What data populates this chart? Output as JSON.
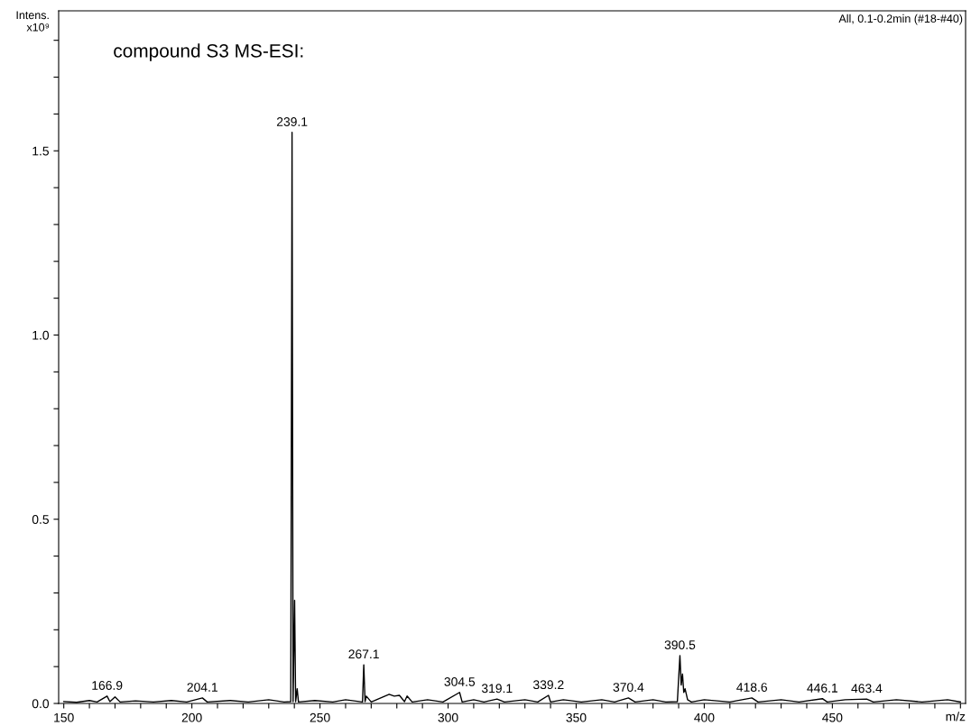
{
  "chart_data": {
    "type": "line",
    "title": "compound S3 MS-ESI:",
    "subtitle": "All, 0.1-0.2min (#18-#40)",
    "xlabel": "m/z",
    "ylabel": "Intens.\nx10⁹",
    "xlim": [
      148,
      502
    ],
    "ylim": [
      0,
      1.88
    ],
    "xticks": [
      150,
      {
        "value": 160,
        "label": null
      },
      {
        "value": 170,
        "label": null
      },
      {
        "value": 180,
        "label": null
      },
      {
        "value": 190,
        "label": null
      },
      200,
      {
        "value": 210,
        "label": null
      },
      {
        "value": 220,
        "label": null
      },
      {
        "value": 230,
        "label": null
      },
      {
        "value": 240,
        "label": null
      },
      250,
      {
        "value": 260,
        "label": null
      },
      {
        "value": 270,
        "label": null
      },
      {
        "value": 280,
        "label": null
      },
      {
        "value": 290,
        "label": null
      },
      300,
      {
        "value": 310,
        "label": null
      },
      {
        "value": 320,
        "label": null
      },
      {
        "value": 330,
        "label": null
      },
      {
        "value": 340,
        "label": null
      },
      350,
      {
        "value": 360,
        "label": null
      },
      {
        "value": 370,
        "label": null
      },
      {
        "value": 380,
        "label": null
      },
      {
        "value": 390,
        "label": null
      },
      400,
      {
        "value": 410,
        "label": null
      },
      {
        "value": 420,
        "label": null
      },
      {
        "value": 430,
        "label": null
      },
      {
        "value": 440,
        "label": null
      },
      450,
      {
        "value": 460,
        "label": null
      },
      {
        "value": 470,
        "label": null
      },
      {
        "value": 480,
        "label": null
      },
      {
        "value": 490,
        "label": null
      },
      {
        "value": 500,
        "label": null
      }
    ],
    "yticks": [
      {
        "value": 0,
        "label": "0.0"
      },
      {
        "value": 0.1,
        "label": null
      },
      {
        "value": 0.2,
        "label": null
      },
      {
        "value": 0.3,
        "label": null
      },
      {
        "value": 0.4,
        "label": null
      },
      0.5,
      {
        "value": 0.6,
        "label": null
      },
      {
        "value": 0.7,
        "label": null
      },
      {
        "value": 0.8,
        "label": null
      },
      {
        "value": 0.9,
        "label": null
      },
      {
        "value": 1.0,
        "label": "1.0"
      },
      {
        "value": 1.1,
        "label": null
      },
      {
        "value": 1.2,
        "label": null
      },
      {
        "value": 1.3,
        "label": null
      },
      {
        "value": 1.4,
        "label": null
      },
      1.5,
      {
        "value": 1.6,
        "label": null
      },
      {
        "value": 1.7,
        "label": null
      },
      {
        "value": 1.8,
        "label": null
      }
    ],
    "grid": false,
    "legend": false,
    "marker": "none",
    "line_style": "solid",
    "series": [
      {
        "color": "#000000",
        "x": [
          150,
          155,
          160,
          163,
          166.9,
          168,
          170,
          172,
          178,
          185,
          192,
          198,
          204.1,
          206,
          215,
          222,
          230,
          236,
          238.6,
          239.1,
          239.5,
          240.1,
          240.5,
          241.1,
          241.6,
          248,
          255,
          260,
          266.6,
          267.1,
          267.6,
          268.1,
          270,
          277,
          279,
          281,
          283,
          284,
          286,
          292,
          298,
          304.5,
          305.5,
          310,
          314,
          319.1,
          322,
          330,
          335,
          339.2,
          340,
          345,
          352,
          360,
          365,
          370.4,
          373,
          380,
          385,
          389.5,
          390.5,
          391,
          391.5,
          392,
          392.5,
          393.5,
          395,
          400,
          410,
          418.6,
          421,
          430,
          437,
          446.1,
          448,
          455,
          463.4,
          466,
          475,
          485,
          495,
          500
        ],
        "values": [
          0.005,
          0.003,
          0.008,
          0.004,
          0.02,
          0.005,
          0.018,
          0.004,
          0.007,
          0.004,
          0.008,
          0.004,
          0.015,
          0.004,
          0.008,
          0.004,
          0.01,
          0.004,
          0.005,
          1.55,
          0.005,
          0.28,
          0.005,
          0.04,
          0.004,
          0.008,
          0.004,
          0.01,
          0.004,
          0.105,
          0.005,
          0.02,
          0.004,
          0.025,
          0.02,
          0.022,
          0.005,
          0.02,
          0.004,
          0.01,
          0.004,
          0.03,
          0.004,
          0.01,
          0.004,
          0.012,
          0.004,
          0.01,
          0.004,
          0.022,
          0.004,
          0.01,
          0.004,
          0.01,
          0.004,
          0.015,
          0.004,
          0.01,
          0.004,
          0.005,
          0.13,
          0.05,
          0.08,
          0.03,
          0.04,
          0.01,
          0.004,
          0.01,
          0.004,
          0.015,
          0.004,
          0.01,
          0.004,
          0.013,
          0.004,
          0.01,
          0.012,
          0.004,
          0.01,
          0.004,
          0.01,
          0.004
        ]
      }
    ],
    "annotations": [
      {
        "text": "166.9",
        "x": 166.9,
        "y": 0.02
      },
      {
        "text": "204.1",
        "x": 204.1,
        "y": 0.015
      },
      {
        "text": "239.1",
        "x": 239.1,
        "y": 1.55
      },
      {
        "text": "267.1",
        "x": 267.1,
        "y": 0.105
      },
      {
        "text": "304.5",
        "x": 304.5,
        "y": 0.03
      },
      {
        "text": "319.1",
        "x": 319.1,
        "y": 0.012
      },
      {
        "text": "339.2",
        "x": 339.2,
        "y": 0.022
      },
      {
        "text": "370.4",
        "x": 370.4,
        "y": 0.015
      },
      {
        "text": "390.5",
        "x": 390.5,
        "y": 0.13
      },
      {
        "text": "418.6",
        "x": 418.6,
        "y": 0.015
      },
      {
        "text": "446.1",
        "x": 446.1,
        "y": 0.013
      },
      {
        "text": "463.4",
        "x": 463.4,
        "y": 0.012
      }
    ]
  }
}
